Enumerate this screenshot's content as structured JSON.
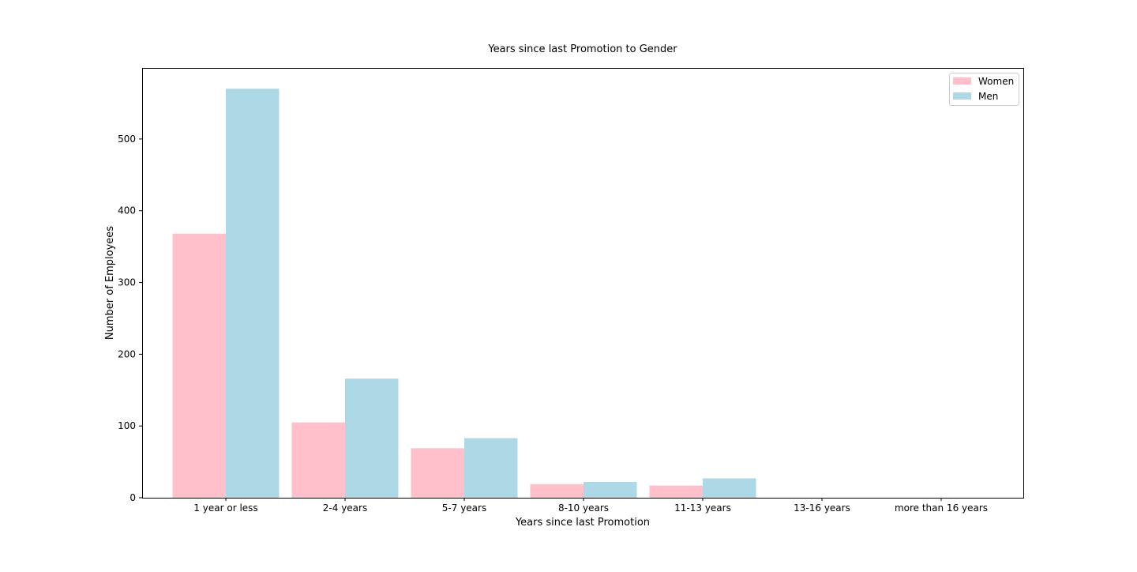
{
  "chart_data": {
    "type": "bar",
    "title": "Years since last Promotion to Gender",
    "xlabel": "Years since last Promotion",
    "ylabel": "Number of Employees",
    "categories": [
      "1 year or less",
      "2-4 years",
      "5-7 years",
      "8-10 years",
      "11-13 years",
      "13-16 years",
      "more than 16 years"
    ],
    "series": [
      {
        "name": "Women",
        "color": "#ffc0cb",
        "values": [
          368,
          105,
          69,
          19,
          17,
          0,
          0
        ]
      },
      {
        "name": "Men",
        "color": "#add8e6",
        "values": [
          570,
          166,
          83,
          22,
          27,
          0,
          0
        ]
      }
    ],
    "ylim": [
      0,
      599
    ],
    "yticks": [
      0,
      100,
      200,
      300,
      400,
      500
    ],
    "grid": false,
    "legend_position": "top-right"
  }
}
